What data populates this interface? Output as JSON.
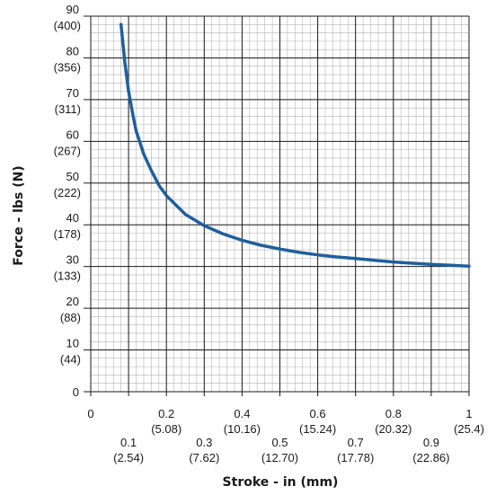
{
  "chart_data": {
    "type": "line",
    "title": "",
    "xlabel": "Stroke - in (mm)",
    "ylabel": "Force - lbs (N)",
    "xlim": [
      0,
      1
    ],
    "ylim": [
      0,
      90
    ],
    "grid": true,
    "x_ticks": [
      {
        "value": 0,
        "label": "0",
        "sub": ""
      },
      {
        "value": 0.1,
        "label": "0.1",
        "sub": "(2.54)"
      },
      {
        "value": 0.2,
        "label": "0.2",
        "sub": "(5.08)"
      },
      {
        "value": 0.3,
        "label": "0.3",
        "sub": "(7.62)"
      },
      {
        "value": 0.4,
        "label": "0.4",
        "sub": "(10.16)"
      },
      {
        "value": 0.5,
        "label": "0.5",
        "sub": "(12.70)"
      },
      {
        "value": 0.6,
        "label": "0.6",
        "sub": "(15.24)"
      },
      {
        "value": 0.7,
        "label": "0.7",
        "sub": "(17.78)"
      },
      {
        "value": 0.8,
        "label": "0.8",
        "sub": "(20.32)"
      },
      {
        "value": 0.9,
        "label": "0.9",
        "sub": "(22.86)"
      },
      {
        "value": 1,
        "label": "1",
        "sub": "(25.4)"
      }
    ],
    "y_ticks": [
      {
        "value": 0,
        "label": "0",
        "sub": ""
      },
      {
        "value": 10,
        "label": "10",
        "sub": "(44)"
      },
      {
        "value": 20,
        "label": "20",
        "sub": "(88)"
      },
      {
        "value": 30,
        "label": "30",
        "sub": "(133)"
      },
      {
        "value": 40,
        "label": "40",
        "sub": "(178)"
      },
      {
        "value": 50,
        "label": "50",
        "sub": "(222)"
      },
      {
        "value": 60,
        "label": "60",
        "sub": "(267)"
      },
      {
        "value": 70,
        "label": "70",
        "sub": "(311)"
      },
      {
        "value": 80,
        "label": "80",
        "sub": "(356)"
      },
      {
        "value": 90,
        "label": "90",
        "sub": "(400)"
      }
    ],
    "series": [
      {
        "color": "#1f5f9c",
        "x": [
          0.08,
          0.09,
          0.1,
          0.11,
          0.12,
          0.14,
          0.16,
          0.18,
          0.2,
          0.25,
          0.3,
          0.35,
          0.4,
          0.45,
          0.5,
          0.55,
          0.6,
          0.65,
          0.7,
          0.75,
          0.8,
          0.85,
          0.9,
          0.95,
          1.0
        ],
        "y": [
          88,
          79,
          72,
          67,
          62.5,
          57,
          53,
          49.5,
          47,
          42.5,
          39.8,
          37.8,
          36.3,
          35.1,
          34.2,
          33.4,
          32.8,
          32.3,
          31.9,
          31.5,
          31.1,
          30.8,
          30.5,
          30.3,
          30.1
        ]
      }
    ]
  }
}
